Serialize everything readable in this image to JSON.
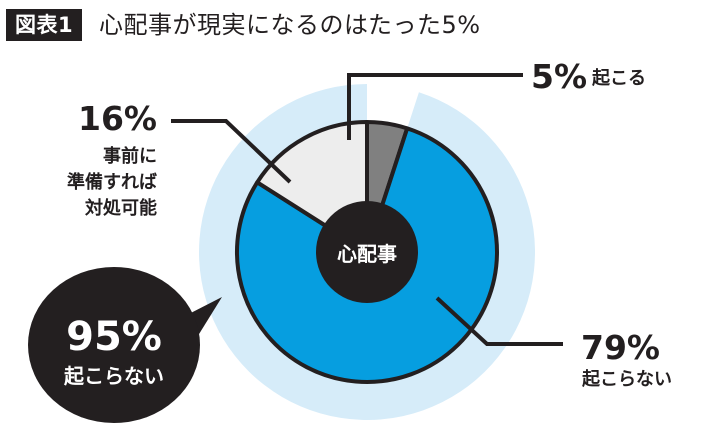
{
  "figure": {
    "tag": "図表1",
    "title": "心配事が現実になるのはたった5%"
  },
  "colors": {
    "not_occur": "#069ee0",
    "prepared": "#ededed",
    "occur": "#808080",
    "halo": "#d6ecf9",
    "center": "#231f20",
    "line": "#231f20",
    "background": "#ffffff"
  },
  "chart_data": {
    "type": "pie",
    "center_label": "心配事",
    "unit": "%",
    "slices": [
      {
        "name": "起こる",
        "value": 5,
        "label_pct": "5%",
        "caption": [
          "起こる"
        ],
        "color": "#808080"
      },
      {
        "name": "起こらない",
        "value": 79,
        "label_pct": "79%",
        "caption": [
          "起こらない"
        ],
        "color": "#069ee0"
      },
      {
        "name": "事前に準備すれば対処可能",
        "value": 16,
        "label_pct": "16%",
        "caption": [
          "事前に",
          "準備すれば",
          "対処可能"
        ],
        "color": "#ededed"
      }
    ],
    "outer_ring": {
      "value": 95,
      "label_pct": "95%",
      "caption": "起こらない"
    }
  }
}
